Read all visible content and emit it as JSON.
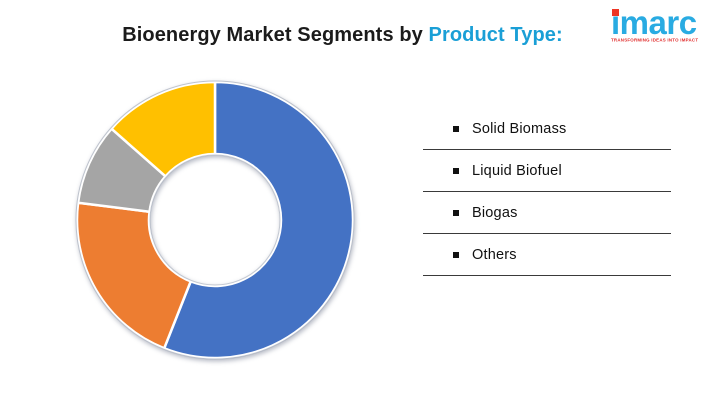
{
  "header": {
    "title_prefix": "Bioenergy Market Segments by ",
    "title_accent": "Product Type:",
    "accent_color": "#1A9FD6"
  },
  "logo": {
    "brand": "imarc",
    "tagline": "TRANSFORMING IDEAS INTO IMPACT",
    "brand_color": "#29ABE2",
    "tagline_color": "#E02B2B",
    "dot_color": "#EE3524"
  },
  "legend": {
    "items": [
      "Solid Biomass",
      "Liquid Biofuel",
      "Biogas",
      "Others"
    ]
  },
  "chart_data": {
    "type": "pie",
    "subtype": "donut",
    "title": "Bioenergy Market Segments by Product Type:",
    "categories": [
      "Solid Biomass",
      "Liquid Biofuel",
      "Biogas",
      "Others"
    ],
    "values": [
      56,
      21,
      9.5,
      13.5
    ],
    "colors": [
      "#4472C4",
      "#ED7D31",
      "#A5A5A5",
      "#FFC000"
    ],
    "start_angle_deg": 0,
    "direction": "clockwise",
    "inner_radius_ratio": 0.48,
    "legend_position": "right",
    "data_labels": false,
    "note": "segment sizes estimated from arc angles; chart displays no numeric labels"
  }
}
